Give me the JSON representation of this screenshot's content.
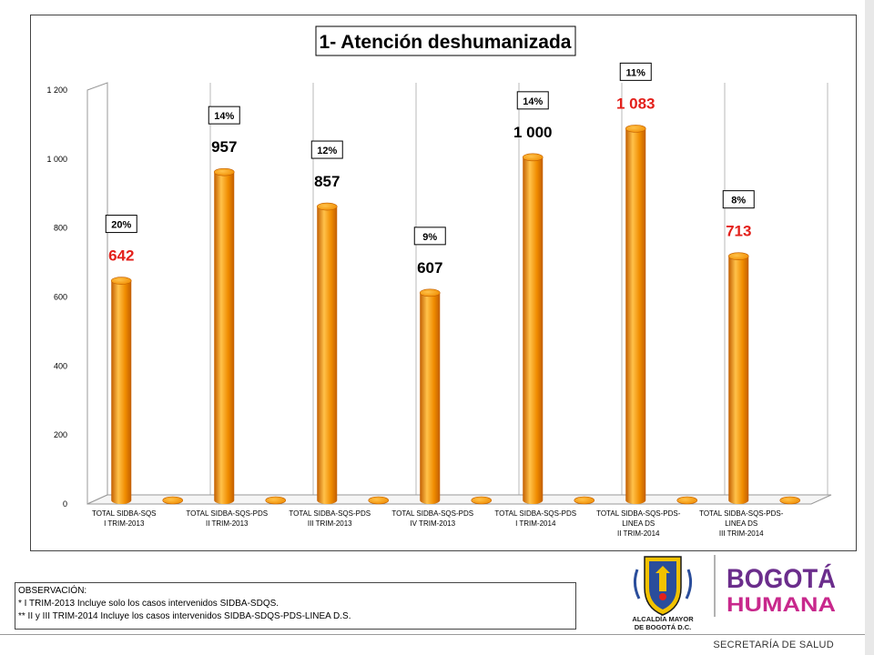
{
  "chart_data": {
    "type": "bar",
    "title": "1- Atención deshumanizada",
    "categories": [
      [
        "TOTAL SIDBA-SQS",
        "I TRIM-2013"
      ],
      [],
      [
        "TOTAL SIDBA-SQS-PDS",
        "II TRIM-2013"
      ],
      [],
      [
        "TOTAL SIDBA-SQS-PDS",
        "III TRIM-2013"
      ],
      [],
      [
        "TOTAL SIDBA-SQS-PDS",
        "IV TRIM-2013"
      ],
      [],
      [
        "TOTAL SIDBA-SQS-PDS",
        "I TRIM-2014"
      ],
      [],
      [
        "TOTAL SIDBA-SQS-PDS-",
        "LINEA DS",
        "II TRIM-2014"
      ],
      [],
      [
        "TOTAL SIDBA-SQS-PDS-",
        "LINEA DS",
        "III TRIM-2014"
      ],
      []
    ],
    "values": [
      642,
      0,
      957,
      0,
      857,
      0,
      607,
      0,
      1000,
      0,
      1083,
      0,
      713,
      0
    ],
    "value_labels": [
      "642",
      "",
      "957",
      "",
      "857",
      "",
      "607",
      "",
      "1 000",
      "",
      "1 083",
      "",
      "713",
      ""
    ],
    "value_label_colors": [
      "#e3201b",
      "",
      "#000000",
      "",
      "#000000",
      "",
      "#000000",
      "",
      "#000000",
      "",
      "#e3201b",
      "",
      "#e3201b",
      ""
    ],
    "percent_labels": [
      "20%",
      "",
      "14%",
      "",
      "12%",
      "",
      "9%",
      "",
      "14%",
      "",
      "11%",
      "",
      "8%",
      ""
    ],
    "ylim": [
      0,
      1200
    ],
    "yticks": [
      0,
      200,
      400,
      600,
      800,
      1000,
      1200
    ],
    "ytick_labels": [
      "0",
      "200",
      "400",
      "600",
      "800",
      "1 000",
      "1 200"
    ],
    "grid": "vertical",
    "bar_color": "#f08c00",
    "bar_highlight": "#ffc24a",
    "bar_shadow": "#c25e00"
  },
  "observations": {
    "title": "OBSERVACIÓN:",
    "line1": "* I TRIM-2013 Incluye solo los casos intervenidos SIDBA-SDQS.",
    "line2": "** II y III TRIM-2014 Incluye los casos intervenidos SIDBA-SDQS-PDS-LINEA  D.S."
  },
  "logos": {
    "alcaldia_line1": "ALCALDÍA MAYOR",
    "alcaldia_line2": "DE BOGOTÁ D.C.",
    "bogota": "BOGOTÁ",
    "humana": "HUMANA"
  },
  "footer": {
    "text": "SECRETARÍA DE SALUD"
  },
  "colors": {
    "bogota_purple": "#6b2d8c",
    "bogota_magenta": "#c8288c",
    "shield_yellow": "#f2c200",
    "shield_blue": "#2a4d9b",
    "highlight_red": "#e3201b"
  }
}
